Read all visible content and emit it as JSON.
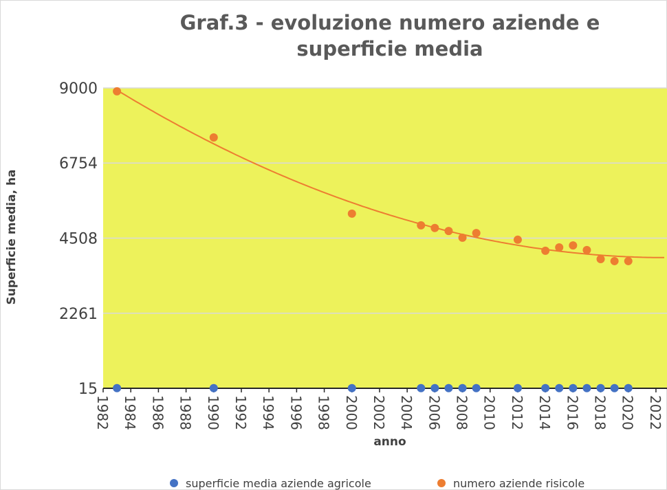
{
  "chart_data": {
    "type": "scatter",
    "title": "Graf.3 - evoluzione numero aziende  e superficie media",
    "x_label": "anno",
    "y_label": "Superficie media, ha",
    "xlim": [
      1982,
      2022.8
    ],
    "xticks": [
      1982,
      1984,
      1986,
      1988,
      1990,
      1992,
      1994,
      1996,
      1998,
      2000,
      2002,
      2004,
      2006,
      2008,
      2010,
      2012,
      2014,
      2016,
      2018,
      2020,
      2022
    ],
    "ylim": [
      15,
      9000
    ],
    "yticks": [
      15,
      2261,
      4508,
      6754,
      9000
    ],
    "grid": true,
    "background": "#edf25b",
    "trendline": "numero aziende risicole",
    "x": [
      1983,
      1990,
      2000,
      2005,
      2006,
      2007,
      2008,
      2009,
      2012,
      2014,
      2015,
      2016,
      2017,
      2018,
      2019,
      2020
    ],
    "series": [
      {
        "name": "superficie media aziende agricole",
        "color": "#4472c4",
        "values": [
          20,
          20,
          20,
          20,
          20,
          20,
          20,
          20,
          20,
          20,
          20,
          20,
          20,
          20,
          20,
          20
        ]
      },
      {
        "name": "numero aziende risicole",
        "color": "#ed7d31",
        "values": [
          8900,
          7520,
          5240,
          4890,
          4810,
          4720,
          4520,
          4660,
          4460,
          4130,
          4230,
          4290,
          4150,
          3880,
          3820,
          3820
        ]
      }
    ]
  }
}
